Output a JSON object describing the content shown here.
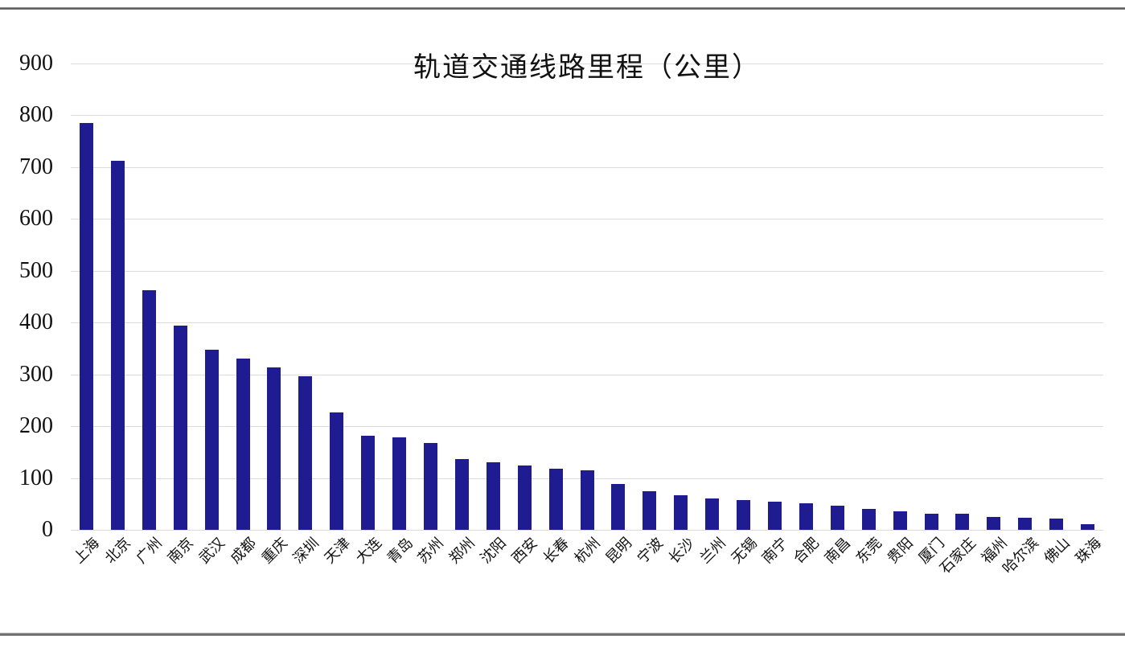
{
  "page": {
    "background_color": "#FFFFFF",
    "top_rule_color": "#5F5F5F",
    "bottom_rule_color": "#6E6E6E"
  },
  "chart_data": {
    "type": "bar",
    "title": "轨道交通线路里程（公里）",
    "categories": [
      "上海",
      "北京",
      "广州",
      "南京",
      "武汉",
      "成都",
      "重庆",
      "深圳",
      "天津",
      "大连",
      "青岛",
      "苏州",
      "郑州",
      "沈阳",
      "西安",
      "长春",
      "杭州",
      "昆明",
      "宁波",
      "长沙",
      "兰州",
      "无锡",
      "南宁",
      "合肥",
      "南昌",
      "东莞",
      "贵阳",
      "厦门",
      "石家庄",
      "福州",
      "哈尔滨",
      "佛山",
      "珠海"
    ],
    "values": [
      785,
      712,
      462,
      394,
      348,
      330,
      314,
      297,
      227,
      182,
      178,
      167,
      137,
      130,
      124,
      118,
      115,
      88,
      75,
      67,
      60,
      58,
      55,
      51,
      47,
      40,
      35,
      31,
      31,
      25,
      23,
      22,
      11
    ],
    "xlabel": "",
    "ylabel": "",
    "ylim": [
      0,
      900
    ],
    "ytick_interval": 100,
    "ytick_labels": [
      "0",
      "100",
      "200",
      "300",
      "400",
      "500",
      "600",
      "700",
      "800",
      "900"
    ],
    "grid": "horizontal",
    "legend_position": "none",
    "bar_color": "#1F1B90",
    "gridline_color": "#DCDCDC",
    "text_color": "#111111"
  }
}
